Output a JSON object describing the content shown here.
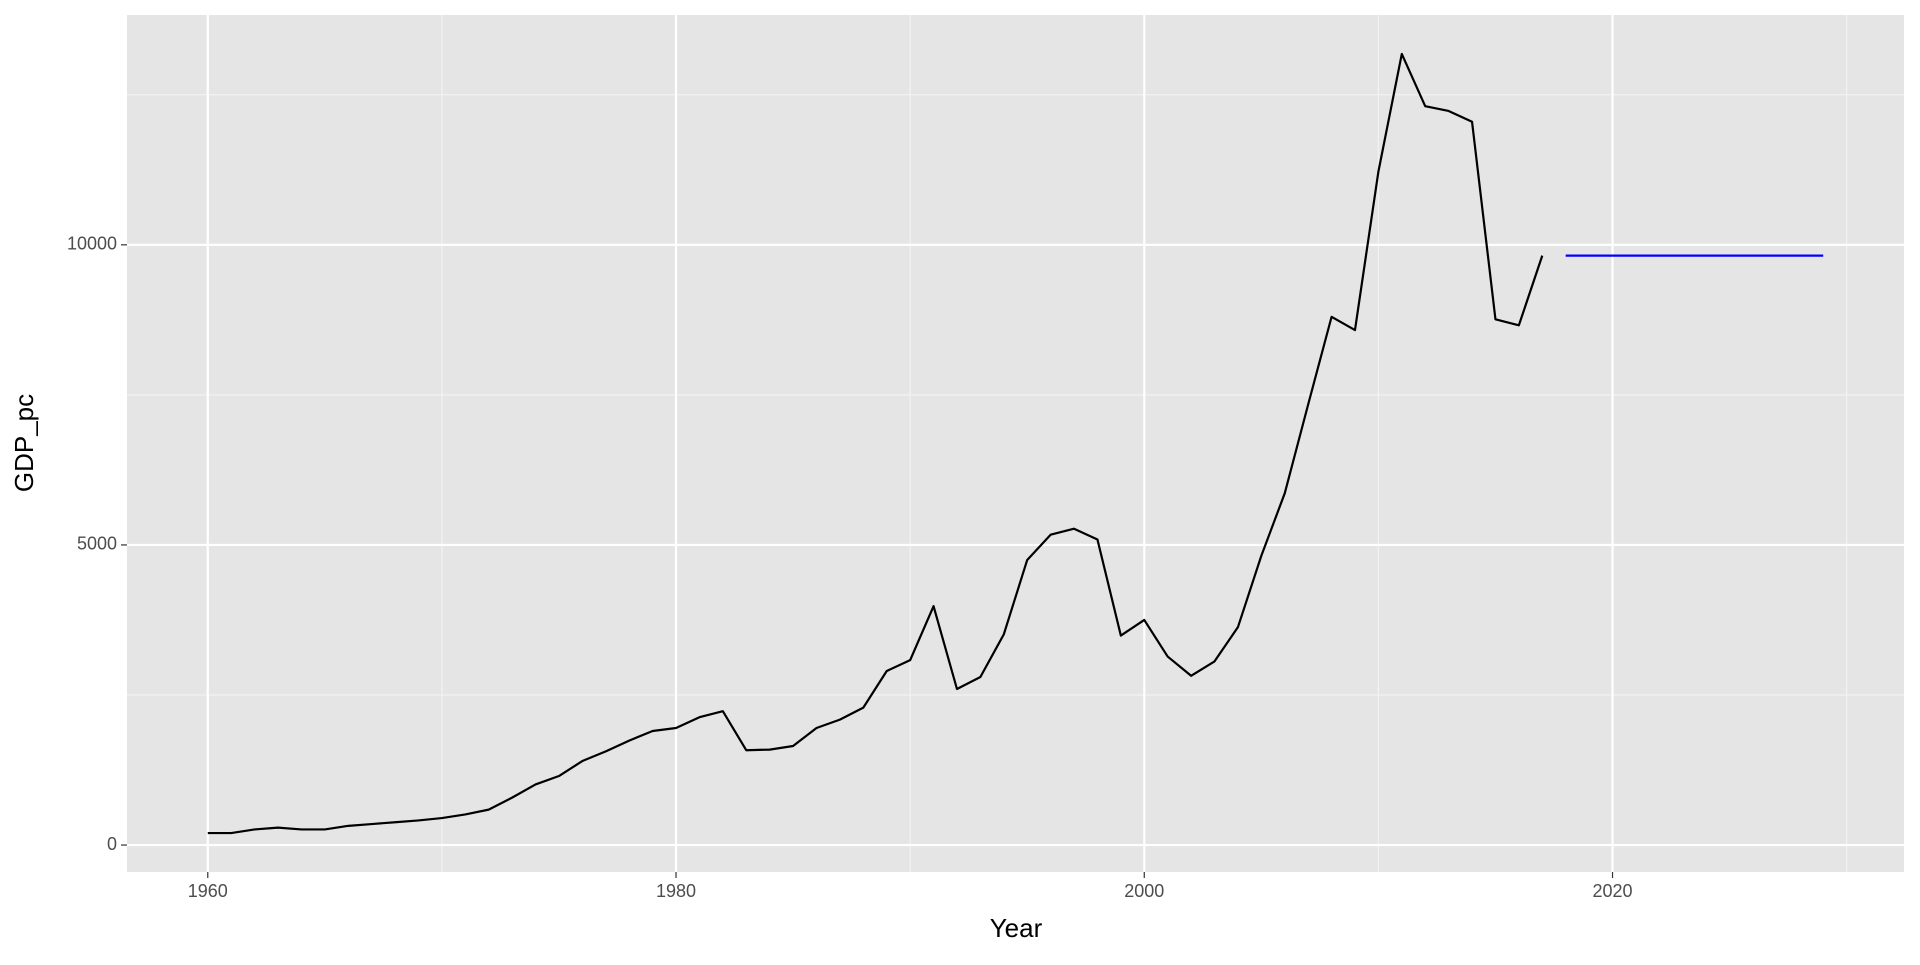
{
  "chart_data": {
    "type": "line",
    "x_label": "Year",
    "y_label": "GDP_pc",
    "x": [
      1960,
      1961,
      1962,
      1963,
      1964,
      1965,
      1966,
      1967,
      1968,
      1969,
      1970,
      1971,
      1972,
      1973,
      1974,
      1975,
      1976,
      1977,
      1978,
      1979,
      1980,
      1981,
      1982,
      1983,
      1984,
      1985,
      1986,
      1987,
      1988,
      1989,
      1990,
      1991,
      1992,
      1993,
      1994,
      1995,
      1996,
      1997,
      1998,
      1999,
      2000,
      2001,
      2002,
      2003,
      2004,
      2005,
      2006,
      2007,
      2008,
      2009,
      2010,
      2011,
      2012,
      2013,
      2014,
      2015,
      2016,
      2017,
      2018,
      2019,
      2020,
      2021,
      2022,
      2023,
      2024,
      2025,
      2026,
      2027,
      2028,
      2029
    ],
    "series": [
      {
        "color": "#000000",
        "values": [
          200,
          200,
          260,
          290,
          260,
          260,
          320,
          350,
          380,
          410,
          450,
          510,
          590,
          790,
          1010,
          1150,
          1400,
          1560,
          1740,
          1900,
          1950,
          2130,
          2230,
          1580,
          1590,
          1650,
          1950,
          2090,
          2290,
          2900,
          3080,
          3980,
          2600,
          2800,
          3510,
          4750,
          5170,
          5270,
          5090,
          3490,
          3750,
          3140,
          2820,
          3060,
          3630,
          4820,
          5860,
          7340,
          8800,
          8580,
          11220,
          13180,
          12310,
          12230,
          12050,
          8760,
          8660,
          9820,
          null,
          null,
          null,
          null,
          null,
          null,
          null,
          null,
          null,
          null,
          null,
          null
        ]
      },
      {
        "color": "#0000ff",
        "values": [
          null,
          null,
          null,
          null,
          null,
          null,
          null,
          null,
          null,
          null,
          null,
          null,
          null,
          null,
          null,
          null,
          null,
          null,
          null,
          null,
          null,
          null,
          null,
          null,
          null,
          null,
          null,
          null,
          null,
          null,
          null,
          null,
          null,
          null,
          null,
          null,
          null,
          null,
          null,
          null,
          null,
          null,
          null,
          null,
          null,
          null,
          null,
          null,
          null,
          null,
          null,
          null,
          null,
          null,
          null,
          null,
          null,
          null,
          9820,
          9820,
          9820,
          9820,
          9820,
          9820,
          9820,
          9820,
          9820,
          9820,
          9820,
          9820
        ]
      }
    ],
    "xlim": [
      1956.55,
      2032.45
    ],
    "ylim": [
      -449,
      13829
    ],
    "xticks": [
      1960,
      1980,
      2000,
      2020
    ],
    "yticks": [
      0,
      5000,
      10000
    ],
    "xminor": [
      1970,
      1990,
      2010,
      2030
    ],
    "yminor": [
      2500,
      7500,
      12500
    ],
    "grid": true
  }
}
